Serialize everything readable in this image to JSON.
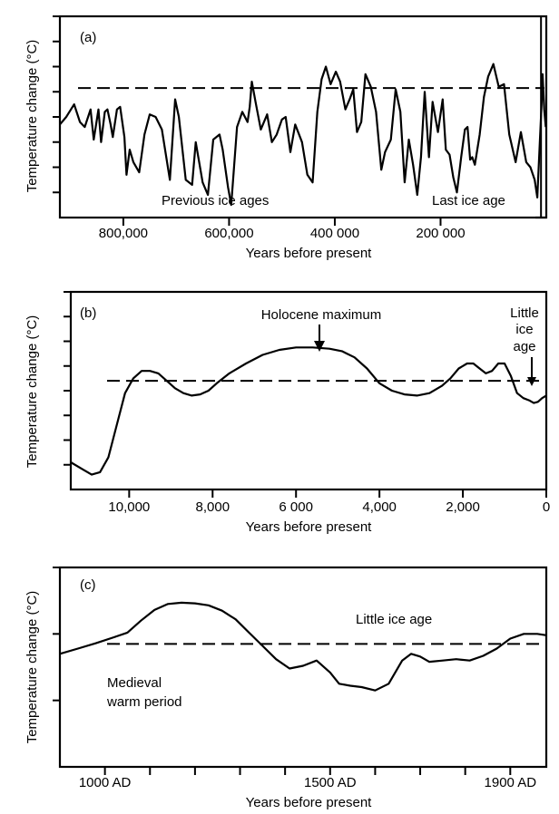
{
  "chart_data": [
    {
      "type": "line",
      "panel_label": "(a)",
      "title": "",
      "xlabel": "Years before present",
      "ylabel": "Temperature change (°C)",
      "xlim": [
        920000,
        0
      ],
      "ylim": [
        0,
        8
      ],
      "x_tick_values": [
        800000,
        600000,
        400000,
        200000
      ],
      "x_tick_labels": [
        "800,000",
        "600,000",
        "400 000",
        "200 000"
      ],
      "y_tick_values": [
        1,
        2,
        3,
        4,
        5,
        6,
        7,
        8
      ],
      "reference_level": 5.15,
      "annotations": [
        {
          "text": "Previous ice ages",
          "x": 590000,
          "y": 0.75
        },
        {
          "text": "Last ice age",
          "x": 60000,
          "y": 0.75
        }
      ],
      "marker_x": 10000,
      "series": [
        {
          "name": "Temperature change",
          "x": [
            920000,
            908000,
            893000,
            882000,
            873000,
            862000,
            856000,
            847000,
            842000,
            835000,
            830000,
            824000,
            820000,
            812000,
            806000,
            798000,
            794000,
            788000,
            781000,
            770000,
            760000,
            750000,
            739000,
            727000,
            712000,
            702000,
            695000,
            682000,
            670000,
            663000,
            650000,
            640000,
            630000,
            618000,
            612000,
            602000,
            596000,
            585000,
            575000,
            565000,
            561000,
            557000,
            550000,
            540000,
            528000,
            519000,
            510000,
            500000,
            493000,
            484000,
            475000,
            462000,
            452000,
            442000,
            433000,
            425000,
            417000,
            408000,
            398000,
            390000,
            380000,
            372000,
            365000,
            358000,
            350000,
            342000,
            332000,
            322000,
            312000,
            305000,
            294000,
            285000,
            276000,
            268000,
            260000,
            252000,
            244000,
            237000,
            230000,
            222000,
            215000,
            205000,
            196000,
            190000,
            183000,
            176000,
            169000,
            161000,
            154000,
            149000,
            144000,
            140000,
            135000,
            126000,
            118000,
            110000,
            100000,
            90000,
            80000,
            70000,
            58000,
            48000,
            38000,
            30000,
            22000,
            17000,
            12000,
            9000,
            7000,
            4000,
            1000
          ],
          "y": [
            3.7,
            4.0,
            4.5,
            3.8,
            3.6,
            4.3,
            3.1,
            4.3,
            3.0,
            4.2,
            4.3,
            3.7,
            3.2,
            4.3,
            4.4,
            3.2,
            1.7,
            2.7,
            2.2,
            1.8,
            3.3,
            4.1,
            4.0,
            3.5,
            1.5,
            4.7,
            4.0,
            1.5,
            1.3,
            3.0,
            1.4,
            0.9,
            3.1,
            3.3,
            2.7,
            1.2,
            0.5,
            3.6,
            4.2,
            3.8,
            4.4,
            5.4,
            4.6,
            3.5,
            4.1,
            3.0,
            3.3,
            3.9,
            4.0,
            2.6,
            3.7,
            3.0,
            1.7,
            1.4,
            4.2,
            5.5,
            6.0,
            5.3,
            5.8,
            5.4,
            4.3,
            4.7,
            5.1,
            3.4,
            3.8,
            5.7,
            5.2,
            4.2,
            1.9,
            2.6,
            3.1,
            5.1,
            4.2,
            1.4,
            3.1,
            2.1,
            0.9,
            2.4,
            5.0,
            2.4,
            4.6,
            3.4,
            4.7,
            2.7,
            2.5,
            1.6,
            1.0,
            2.4,
            3.5,
            3.6,
            2.3,
            2.4,
            2.1,
            3.3,
            4.8,
            5.6,
            6.1,
            5.2,
            5.3,
            3.3,
            2.2,
            3.4,
            2.2,
            2.0,
            1.5,
            0.8,
            3.1,
            4.5,
            5.7,
            4.3,
            3.6
          ]
        }
      ]
    },
    {
      "type": "line",
      "panel_label": "(b)",
      "title": "",
      "xlabel": "Years before present",
      "ylabel": "Temperature change (°C)",
      "xlim": [
        11400,
        0
      ],
      "ylim": [
        0,
        8
      ],
      "x_tick_values": [
        10000,
        8000,
        6000,
        4000,
        2000,
        0
      ],
      "x_tick_labels": [
        "10,000",
        "8,000",
        "6 000",
        "4,000",
        "2,000",
        "0"
      ],
      "y_tick_values": [
        1,
        2,
        3,
        4,
        5,
        6,
        7,
        8
      ],
      "reference_level": 4.4,
      "annotations": [
        {
          "text": "Holocene maximum",
          "x": 5500,
          "y": 7.6,
          "arrow_to": [
            5500,
            5.7
          ]
        },
        {
          "text": "Little",
          "x": 50,
          "y": 7.5
        },
        {
          "text": "ice",
          "x": 50,
          "y": 6.9
        },
        {
          "text": "age",
          "x": 50,
          "y": 6.3,
          "arrow_to": [
            300,
            3.9
          ]
        }
      ],
      "series": [
        {
          "name": "Temperature change",
          "x": [
            11400,
            11100,
            10900,
            10700,
            10500,
            10300,
            10100,
            9900,
            9700,
            9500,
            9300,
            9100,
            8900,
            8700,
            8500,
            8300,
            8100,
            7900,
            7600,
            7200,
            6800,
            6400,
            6000,
            5600,
            5200,
            4900,
            4600,
            4300,
            4000,
            3700,
            3400,
            3100,
            2800,
            2500,
            2300,
            2100,
            1900,
            1750,
            1600,
            1450,
            1300,
            1150,
            1000,
            850,
            700,
            550,
            400,
            300,
            200,
            100,
            0
          ],
          "y": [
            1.1,
            0.8,
            0.6,
            0.7,
            1.3,
            2.6,
            3.9,
            4.5,
            4.8,
            4.8,
            4.7,
            4.4,
            4.1,
            3.9,
            3.8,
            3.85,
            4.0,
            4.3,
            4.7,
            5.1,
            5.45,
            5.65,
            5.75,
            5.75,
            5.7,
            5.6,
            5.35,
            4.9,
            4.3,
            4.0,
            3.85,
            3.8,
            3.9,
            4.2,
            4.5,
            4.9,
            5.1,
            5.1,
            4.9,
            4.7,
            4.8,
            5.1,
            5.1,
            4.6,
            3.9,
            3.7,
            3.6,
            3.5,
            3.55,
            3.7,
            3.8
          ]
        }
      ]
    },
    {
      "type": "line",
      "panel_label": "(c)",
      "title": "",
      "xlabel": "Years before present",
      "ylabel": "Temperature change (°C)",
      "xlim": [
        900,
        1980
      ],
      "ylim": [
        0,
        3
      ],
      "x_tick_values": [
        1000,
        1100,
        1200,
        1300,
        1400,
        1500,
        1600,
        1700,
        1800,
        1900
      ],
      "x_tick_labels": [
        "1000 AD",
        "",
        "",
        "",
        "",
        "1500 AD",
        "",
        "",
        "",
        "1900 AD"
      ],
      "y_tick_values": [
        1,
        2,
        3
      ],
      "reference_level": 1.85,
      "annotations": [
        {
          "text": "Little ice age",
          "x": 1540,
          "y": 2.4
        },
        {
          "text": "Medieval",
          "x": 980,
          "y": 1.65
        },
        {
          "text": "warm period",
          "x": 980,
          "y": 1.43
        }
      ],
      "series": [
        {
          "name": "Temperature change",
          "x": [
            900,
            940,
            980,
            1020,
            1050,
            1080,
            1110,
            1140,
            1170,
            1200,
            1230,
            1260,
            1290,
            1320,
            1350,
            1380,
            1410,
            1440,
            1470,
            1500,
            1520,
            1545,
            1570,
            1600,
            1630,
            1660,
            1680,
            1700,
            1720,
            1750,
            1780,
            1810,
            1840,
            1870,
            1900,
            1930,
            1960,
            1980
          ],
          "y": [
            1.7,
            1.78,
            1.86,
            1.95,
            2.02,
            2.2,
            2.36,
            2.45,
            2.47,
            2.46,
            2.43,
            2.35,
            2.22,
            2.02,
            1.82,
            1.62,
            1.48,
            1.52,
            1.6,
            1.42,
            1.25,
            1.22,
            1.2,
            1.15,
            1.25,
            1.6,
            1.7,
            1.66,
            1.58,
            1.6,
            1.62,
            1.6,
            1.67,
            1.78,
            1.93,
            2.0,
            2.0,
            1.98
          ]
        }
      ]
    }
  ]
}
